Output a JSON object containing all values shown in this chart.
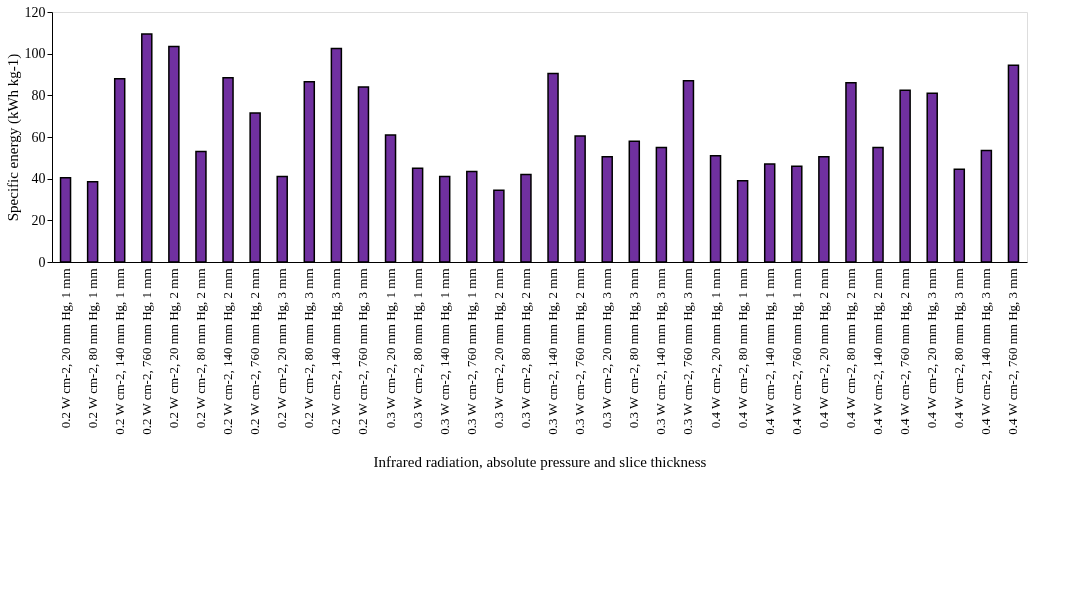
{
  "chart_data": {
    "type": "bar",
    "xlabel": "Infrared radiation, absolute pressure and slice thickness",
    "ylabel": "Specific energy (kWh kg-1)",
    "categories": [
      "0.2 W cm-2, 20 mm Hg, 1 mm",
      "0.2 W cm-2, 80 mm Hg, 1 mm",
      "0.2 W cm-2, 140 mm Hg, 1 mm",
      "0.2 W cm-2, 760 mm Hg, 1 mm",
      "0.2 W cm-2, 20 mm Hg, 2 mm",
      "0.2 W cm-2, 80 mm Hg, 2 mm",
      "0.2 W cm-2, 140 mm Hg, 2 mm",
      "0.2 W cm-2, 760 mm Hg, 2 mm",
      "0.2 W cm-2, 20 mm Hg, 3 mm",
      "0.2 W cm-2, 80 mm Hg, 3 mm",
      "0.2 W cm-2, 140 mm Hg, 3 mm",
      "0.2 W cm-2, 760 mm Hg, 3 mm",
      "0.3 W cm-2, 20 mm Hg, 1 mm",
      "0.3 W cm-2, 80 mm Hg, 1 mm",
      "0.3 W cm-2, 140 mm Hg, 1 mm",
      "0.3 W cm-2, 760 mm Hg, 1 mm",
      "0.3 W cm-2, 20 mm Hg, 2 mm",
      "0.3 W cm-2, 80 mm Hg, 2 mm",
      "0.3 W cm-2, 140 mm Hg, 2 mm",
      "0.3 W cm-2, 760 mm Hg, 2 mm",
      "0.3 W cm-2, 20 mm Hg, 3 mm",
      "0.3 W cm-2, 80 mm Hg, 3 mm",
      "0.3 W cm-2, 140 mm Hg, 3 mm",
      "0.3 W cm-2, 760 mm Hg, 3 mm",
      "0.4 W cm-2, 20 mm Hg, 1 mm",
      "0.4 W cm-2, 80 mm Hg, 1 mm",
      "0.4 W cm-2, 140 mm Hg, 1 mm",
      "0.4 W cm-2, 760 mm Hg, 1 mm",
      "0.4 W cm-2, 20 mm Hg, 2 mm",
      "0.4 W cm-2, 80 mm Hg, 2 mm",
      "0.4 W cm-2, 140 mm Hg, 2 mm",
      "0.4 W cm-2, 760 mm Hg, 2 mm",
      "0.4 W cm-2, 20 mm Hg, 3 mm",
      "0.4 W cm-2, 80 mm Hg, 3 mm",
      "0.4 W cm-2, 140 mm Hg, 3 mm",
      "0.4 W cm-2, 760 mm Hg, 3 mm"
    ],
    "values": [
      40.5,
      38.5,
      88,
      109.5,
      103.5,
      53,
      88.5,
      71.5,
      41,
      86.5,
      102.5,
      84,
      61,
      45,
      41,
      43.5,
      34.5,
      42,
      90.5,
      60.5,
      50.5,
      58,
      55,
      87,
      51,
      39,
      47,
      46,
      50.5,
      86,
      55,
      82.5,
      81,
      44.5,
      53.5,
      94.5
    ],
    "color": "#7030a0",
    "ylim": [
      0,
      120
    ],
    "yticks": [
      0,
      20,
      40,
      60,
      80,
      100,
      120
    ],
    "grid": false
  }
}
